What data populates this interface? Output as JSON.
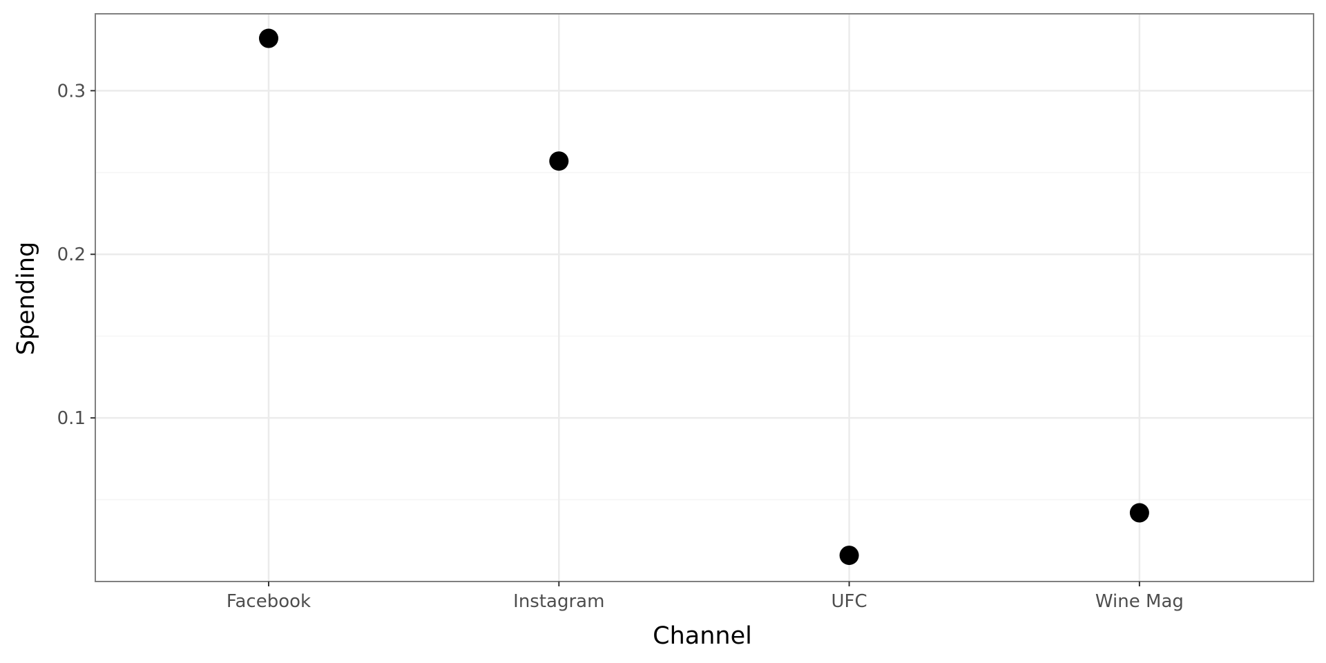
{
  "chart_data": {
    "type": "scatter",
    "title": "",
    "xlabel": "Channel",
    "ylabel": "Spending",
    "categories": [
      "Facebook",
      "Instagram",
      "UFC",
      "Wine Mag"
    ],
    "series": [
      {
        "values": [
          0.332,
          0.257,
          0.016,
          0.042
        ]
      }
    ],
    "ylim": [
      0.0,
      0.347
    ],
    "yticks": [
      0.1,
      0.2,
      0.3
    ],
    "ytick_labels": [
      "0.1",
      "0.2",
      "0.3"
    ],
    "grid": true,
    "legend": "none",
    "colors": {
      "point": "#000000",
      "grid_major": "#ebebeb",
      "grid_minor": "#f5f5f5",
      "panel_border": "#7f7f7f",
      "tick_text": "#4d4d4d"
    }
  }
}
